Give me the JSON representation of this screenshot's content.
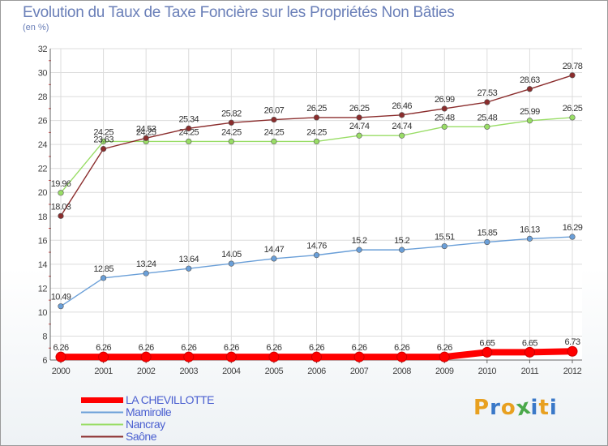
{
  "chart_data": {
    "type": "line",
    "title": "Evolution du Taux de Taxe Foncière sur les Propriétés Non Bâties",
    "ylabel": "(en %)",
    "xlabel": "",
    "ylim": [
      6,
      32
    ],
    "yticks": [
      6,
      8,
      10,
      12,
      14,
      16,
      18,
      20,
      22,
      24,
      26,
      28,
      30,
      32
    ],
    "grid": true,
    "categories": [
      "2000",
      "2001",
      "2002",
      "2003",
      "2004",
      "2005",
      "2006",
      "2007",
      "2008",
      "2009",
      "2010",
      "2011",
      "2012"
    ],
    "series": [
      {
        "name": "LA CHEVILLOTTE",
        "color": "#ff0000",
        "values": [
          6.26,
          6.26,
          6.26,
          6.26,
          6.26,
          6.26,
          6.26,
          6.26,
          6.26,
          6.26,
          6.65,
          6.65,
          6.73
        ],
        "labels": [
          "6.26",
          "6.26",
          "6.26",
          "6.26",
          "6.26",
          "6.26",
          "6.26",
          "6.26",
          "6.26",
          "6.26",
          "6.65",
          "6.65",
          "6.73"
        ]
      },
      {
        "name": "Mamirolle",
        "color": "#6a9fd8",
        "values": [
          10.49,
          12.85,
          13.24,
          13.64,
          14.05,
          14.47,
          14.76,
          15.2,
          15.2,
          15.51,
          15.85,
          16.13,
          16.29
        ],
        "labels": [
          "10.49",
          "12.85",
          "13.24",
          "13.64",
          "14.05",
          "14.47",
          "14.76",
          "15.2",
          "15.2",
          "15.51",
          "15.85",
          "16.13",
          "16.29"
        ]
      },
      {
        "name": "Nancray",
        "color": "#99dd66",
        "values": [
          19.96,
          24.25,
          24.25,
          24.25,
          24.25,
          24.25,
          24.25,
          24.74,
          24.74,
          25.48,
          25.48,
          25.99,
          26.25
        ],
        "labels": [
          "19.96",
          "24.25",
          "24.25",
          "24.25",
          "24.25",
          "24.25",
          "24.25",
          "24.74",
          "24.74",
          "25.48",
          "25.48",
          "25.99",
          "26.25"
        ]
      },
      {
        "name": "Saône",
        "color": "#8b2d2d",
        "values": [
          18.03,
          23.63,
          24.53,
          25.34,
          25.82,
          26.07,
          26.25,
          26.25,
          26.46,
          26.99,
          27.53,
          28.63,
          29.78
        ],
        "labels": [
          "18.03",
          "23.63",
          "24.53",
          "25.34",
          "25.82",
          "26.07",
          "26.25",
          "26.25",
          "26.46",
          "26.99",
          "27.53",
          "28.63",
          "29.78"
        ]
      }
    ]
  },
  "legend": {
    "items": [
      {
        "label": "LA CHEVILLOTTE",
        "color": "#ff0000"
      },
      {
        "label": "Mamirolle",
        "color": "#6a9fd8"
      },
      {
        "label": "Nancray",
        "color": "#99dd66"
      },
      {
        "label": "Saône",
        "color": "#8b2d2d"
      }
    ]
  },
  "logo": {
    "text": "Proxiti",
    "letters": [
      "P",
      "r",
      "o",
      "x",
      "i",
      "t",
      "i"
    ],
    "colors": [
      "#e8a020",
      "#3a78c8",
      "#e8a020",
      "#4aa84a",
      "#3a78c8",
      "#e8a020",
      "#3a78c8"
    ]
  }
}
